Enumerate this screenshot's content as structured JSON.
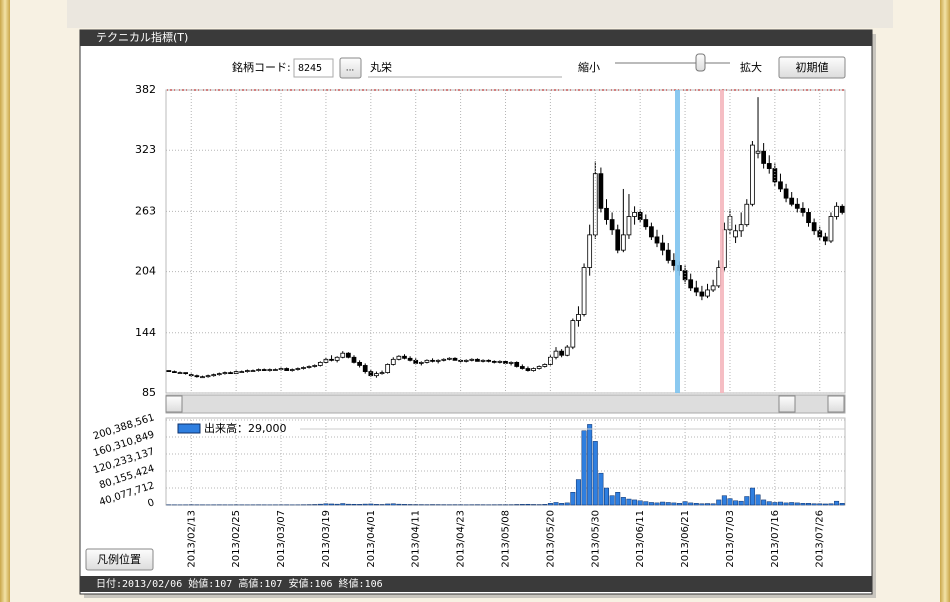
{
  "ui": {
    "window_title": "テクニカル指標(T)",
    "code_label": "銘柄コード:",
    "code": "8245",
    "browse": "...",
    "name": "丸栄",
    "zoom_out": "縮小",
    "zoom_in": "拡大",
    "reset": "初期値",
    "legend_pos": "凡例位置",
    "status": "日付:2013/02/06 始値:107 高値:107 安値:106 終値:106"
  },
  "chart_data": [
    {
      "type": "candlestick",
      "up_color": "#ffffff",
      "down_color": "#000000",
      "grid": true,
      "ylim": [
        85,
        382
      ],
      "yticks": [
        85,
        144,
        204,
        263,
        323,
        382
      ],
      "values": [
        [
          107,
          107,
          106,
          106
        ],
        [
          106,
          107,
          105,
          105
        ],
        [
          105,
          106,
          104,
          105
        ],
        [
          105,
          105,
          103,
          104
        ],
        [
          103,
          104,
          101,
          102
        ],
        [
          102,
          103,
          100,
          101
        ],
        [
          101,
          102,
          100,
          101
        ],
        [
          101,
          103,
          100,
          102
        ],
        [
          102,
          104,
          101,
          103
        ],
        [
          103,
          105,
          102,
          104
        ],
        [
          104,
          106,
          103,
          105
        ],
        [
          105,
          106,
          104,
          104
        ],
        [
          104,
          107,
          104,
          106
        ],
        [
          106,
          107,
          105,
          106
        ],
        [
          106,
          108,
          105,
          107
        ],
        [
          107,
          108,
          106,
          107
        ],
        [
          107,
          109,
          106,
          108
        ],
        [
          108,
          109,
          107,
          107
        ],
        [
          107,
          109,
          106,
          108
        ],
        [
          108,
          109,
          107,
          108
        ],
        [
          108,
          110,
          107,
          109
        ],
        [
          109,
          110,
          107,
          107
        ],
        [
          107,
          109,
          106,
          108
        ],
        [
          108,
          110,
          107,
          109
        ],
        [
          109,
          111,
          108,
          110
        ],
        [
          110,
          112,
          109,
          111
        ],
        [
          111,
          113,
          110,
          112
        ],
        [
          112,
          116,
          111,
          115
        ],
        [
          115,
          120,
          114,
          118
        ],
        [
          118,
          122,
          116,
          117
        ],
        [
          117,
          121,
          115,
          120
        ],
        [
          120,
          126,
          119,
          124
        ],
        [
          124,
          125,
          119,
          120
        ],
        [
          120,
          122,
          114,
          115
        ],
        [
          115,
          117,
          110,
          112
        ],
        [
          112,
          114,
          104,
          106
        ],
        [
          106,
          108,
          101,
          102
        ],
        [
          102,
          106,
          100,
          104
        ],
        [
          104,
          107,
          103,
          105
        ],
        [
          105,
          114,
          104,
          113
        ],
        [
          113,
          120,
          112,
          118
        ],
        [
          118,
          122,
          117,
          121
        ],
        [
          121,
          123,
          118,
          119
        ],
        [
          119,
          121,
          116,
          117
        ],
        [
          117,
          119,
          113,
          114
        ],
        [
          114,
          116,
          112,
          115
        ],
        [
          115,
          118,
          114,
          117
        ],
        [
          117,
          119,
          115,
          116
        ],
        [
          116,
          118,
          114,
          117
        ],
        [
          117,
          119,
          116,
          118
        ],
        [
          118,
          120,
          117,
          119
        ],
        [
          119,
          120,
          117,
          117
        ],
        [
          117,
          118,
          115,
          116
        ],
        [
          116,
          118,
          115,
          117
        ],
        [
          117,
          119,
          116,
          118
        ],
        [
          118,
          119,
          116,
          116
        ],
        [
          116,
          118,
          115,
          117
        ],
        [
          117,
          118,
          115,
          116
        ],
        [
          116,
          117,
          114,
          115
        ],
        [
          115,
          117,
          114,
          116
        ],
        [
          116,
          117,
          113,
          114
        ],
        [
          114,
          116,
          112,
          115
        ],
        [
          115,
          116,
          110,
          111
        ],
        [
          111,
          113,
          108,
          109
        ],
        [
          109,
          111,
          106,
          107
        ],
        [
          107,
          110,
          106,
          109
        ],
        [
          109,
          112,
          108,
          111
        ],
        [
          111,
          114,
          110,
          113
        ],
        [
          113,
          122,
          112,
          120
        ],
        [
          120,
          130,
          118,
          126
        ],
        [
          126,
          128,
          120,
          122
        ],
        [
          122,
          132,
          121,
          130
        ],
        [
          130,
          158,
          128,
          156
        ],
        [
          156,
          170,
          150,
          162
        ],
        [
          162,
          212,
          160,
          208
        ],
        [
          208,
          250,
          200,
          240
        ],
        [
          240,
          312,
          236,
          300
        ],
        [
          300,
          306,
          262,
          266
        ],
        [
          266,
          275,
          250,
          255
        ],
        [
          255,
          262,
          240,
          245
        ],
        [
          245,
          250,
          222,
          225
        ],
        [
          225,
          285,
          223,
          240
        ],
        [
          240,
          280,
          236,
          258
        ],
        [
          258,
          268,
          250,
          262
        ],
        [
          262,
          265,
          252,
          255
        ],
        [
          255,
          260,
          245,
          248
        ],
        [
          248,
          252,
          235,
          238
        ],
        [
          238,
          245,
          228,
          232
        ],
        [
          232,
          240,
          220,
          225
        ],
        [
          225,
          232,
          212,
          215
        ],
        [
          215,
          222,
          205,
          210
        ],
        [
          210,
          214,
          200,
          205
        ],
        [
          205,
          210,
          192,
          196
        ],
        [
          196,
          202,
          185,
          188
        ],
        [
          188,
          195,
          180,
          184
        ],
        [
          184,
          190,
          176,
          180
        ],
        [
          180,
          192,
          178,
          186
        ],
        [
          186,
          196,
          184,
          190
        ],
        [
          190,
          215,
          188,
          208
        ],
        [
          208,
          252,
          205,
          245
        ],
        [
          245,
          265,
          240,
          258
        ],
        [
          238,
          250,
          232,
          244
        ],
        [
          244,
          262,
          238,
          250
        ],
        [
          250,
          275,
          248,
          270
        ],
        [
          270,
          332,
          268,
          328
        ],
        [
          320,
          375,
          315,
          322
        ],
        [
          322,
          330,
          305,
          310
        ],
        [
          310,
          318,
          300,
          305
        ],
        [
          305,
          310,
          288,
          292
        ],
        [
          292,
          300,
          282,
          285
        ],
        [
          285,
          290,
          272,
          276
        ],
        [
          276,
          282,
          268,
          270
        ],
        [
          270,
          276,
          262,
          266
        ],
        [
          266,
          272,
          258,
          262
        ],
        [
          262,
          266,
          248,
          252
        ],
        [
          252,
          256,
          240,
          244
        ],
        [
          244,
          248,
          234,
          238
        ],
        [
          238,
          242,
          230,
          234
        ],
        [
          234,
          262,
          232,
          258
        ],
        [
          258,
          272,
          255,
          268
        ],
        [
          268,
          270,
          260,
          262
        ]
      ]
    },
    {
      "type": "bar",
      "grid": true,
      "ylim": [
        0,
        200388561
      ],
      "yticks": [
        0,
        {
          "value": 40077712,
          "label": "40,077,712"
        },
        {
          "value": 80155424,
          "label": "80,155,424"
        },
        {
          "value": 120233137,
          "label": "120,233,137"
        },
        {
          "value": 160310849,
          "label": "160,310,849"
        },
        {
          "value": 200388561,
          "label": "200,388,561"
        }
      ],
      "categories": [
        null,
        null,
        null,
        null,
        "2013/02/13",
        null,
        null,
        null,
        null,
        null,
        null,
        null,
        "2013/02/25",
        null,
        null,
        null,
        null,
        null,
        null,
        null,
        "2013/03/07",
        null,
        null,
        null,
        null,
        null,
        null,
        null,
        "2013/03/19",
        null,
        null,
        null,
        null,
        null,
        null,
        null,
        "2013/04/01",
        null,
        null,
        null,
        null,
        null,
        null,
        null,
        "2013/04/11",
        null,
        null,
        null,
        null,
        null,
        null,
        null,
        "2013/04/23",
        null,
        null,
        null,
        null,
        null,
        null,
        null,
        "2013/05/08",
        null,
        null,
        null,
        null,
        null,
        null,
        null,
        "2013/05/20",
        null,
        null,
        null,
        null,
        null,
        null,
        null,
        "2013/05/30",
        null,
        null,
        null,
        null,
        null,
        null,
        null,
        "2013/06/11",
        null,
        null,
        null,
        null,
        null,
        null,
        null,
        "2013/06/21",
        null,
        null,
        null,
        null,
        null,
        null,
        null,
        "2013/07/03",
        null,
        null,
        null,
        null,
        null,
        null,
        null,
        "2013/07/16",
        null,
        null,
        null,
        null,
        null,
        null,
        null,
        "2013/07/26",
        null,
        null,
        null,
        null
      ],
      "series": [
        {
          "name": "出来高：29,000",
          "color": "#2f7fe0",
          "values": [
            600000,
            500000,
            400000,
            500000,
            700000,
            600000,
            500000,
            400000,
            500000,
            600000,
            500000,
            400000,
            600000,
            500000,
            400000,
            500000,
            600000,
            500000,
            400000,
            500000,
            500000,
            600000,
            400000,
            500000,
            700000,
            900000,
            1200000,
            2000000,
            3000000,
            2500000,
            2000000,
            3500000,
            2000000,
            1800000,
            1500000,
            2200000,
            2500000,
            1500000,
            1200000,
            2500000,
            3000000,
            2000000,
            1500000,
            1200000,
            1000000,
            900000,
            800000,
            1000000,
            900000,
            800000,
            700000,
            800000,
            700000,
            600000,
            700000,
            800000,
            700000,
            600000,
            700000,
            800000,
            700000,
            800000,
            1200000,
            1500000,
            1800000,
            1200000,
            1000000,
            1500000,
            4000000,
            6000000,
            4000000,
            5000000,
            30000000,
            60000000,
            175000000,
            190000000,
            150000000,
            75000000,
            40000000,
            22000000,
            30000000,
            18000000,
            14000000,
            12000000,
            10000000,
            8000000,
            6000000,
            5000000,
            7000000,
            6000000,
            5000000,
            4000000,
            8000000,
            5000000,
            4000000,
            3000000,
            3500000,
            3000000,
            12000000,
            22000000,
            15000000,
            10000000,
            9000000,
            20000000,
            40000000,
            24000000,
            12000000,
            8000000,
            6000000,
            7000000,
            5000000,
            6000000,
            5000000,
            4000000,
            4000000,
            3000000,
            3000000,
            2500000,
            3000000,
            9000000,
            4000000
          ]
        }
      ]
    }
  ]
}
